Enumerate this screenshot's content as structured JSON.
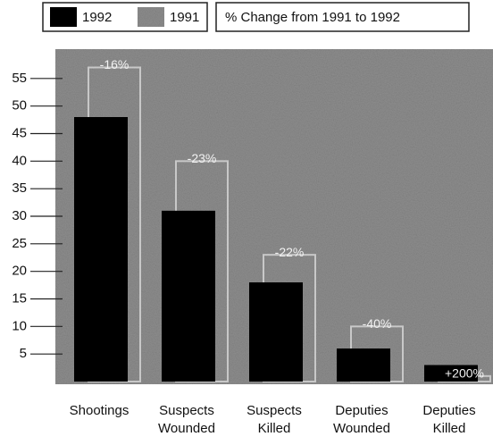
{
  "chart_data": {
    "type": "bar",
    "categories": [
      "Shootings",
      "Suspects Wounded",
      "Suspects Killed",
      "Deputies Wounded",
      "Deputies Killed"
    ],
    "series": [
      {
        "name": "1992",
        "color": "#000000",
        "values": [
          48,
          31,
          18,
          6,
          3
        ]
      },
      {
        "name": "1991",
        "color": "#c8c8c8",
        "values": [
          57,
          40,
          23,
          10,
          1
        ]
      }
    ],
    "annotations": [
      "-16%",
      "-23%",
      "-22%",
      "-40%",
      "+200%"
    ],
    "legend_note": "% Change from 1991 to 1992",
    "ylim": [
      0,
      60
    ],
    "yticks": [
      5,
      10,
      15,
      20,
      25,
      30,
      35,
      40,
      45,
      50,
      55
    ]
  }
}
